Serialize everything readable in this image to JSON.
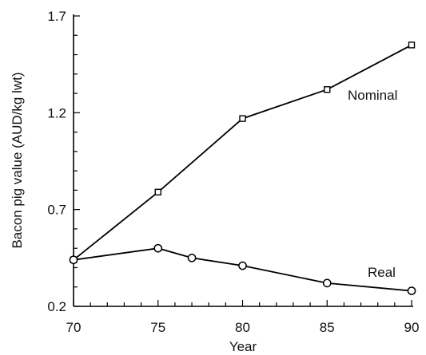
{
  "chart_data": {
    "type": "line",
    "xlabel": "Year",
    "ylabel": "Bacon pig value (AUD/kg lwt)",
    "xlim": [
      70,
      90
    ],
    "ylim": [
      0.2,
      1.7
    ],
    "x_ticks": [
      "70",
      "75",
      "80",
      "85",
      "90"
    ],
    "y_ticks": [
      "0.2",
      "0.7",
      "1.2",
      "1.7"
    ],
    "grid": false,
    "legend": "inline labels",
    "series": [
      {
        "name": "Nominal",
        "marker": "square",
        "x": [
          70,
          75,
          80,
          85,
          90
        ],
        "y": [
          0.44,
          0.79,
          1.17,
          1.32,
          1.55
        ]
      },
      {
        "name": "Real",
        "marker": "circle",
        "x": [
          70,
          75,
          77,
          80,
          85,
          90
        ],
        "y": [
          0.44,
          0.5,
          0.45,
          0.41,
          0.32,
          0.28
        ]
      }
    ]
  }
}
